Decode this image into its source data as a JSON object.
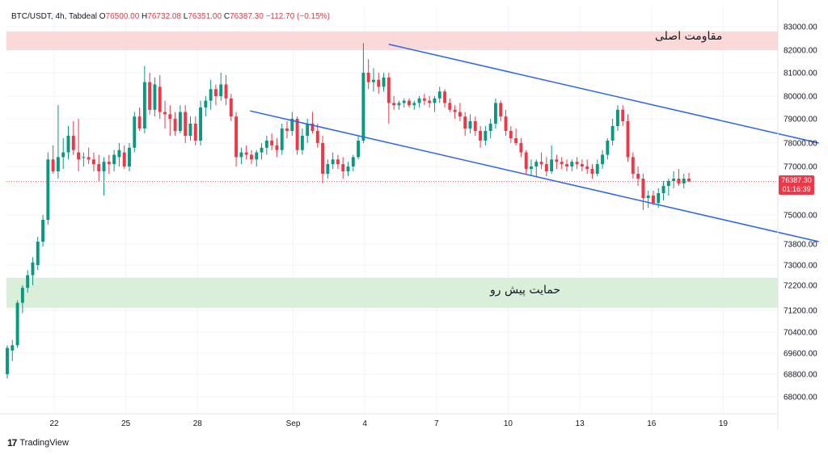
{
  "legend": {
    "symbol": "BTC/USDT, 4h, Tabdeal",
    "o_label": "O",
    "o_value": "76500.00",
    "h_label": "H",
    "h_value": "76732.08",
    "l_label": "L",
    "l_value": "76351.00",
    "c_label": "C",
    "c_value": "76387.30",
    "change": "−112.70 (−0.15%)"
  },
  "last_price": {
    "value": "76387.30",
    "countdown": "01:16:39",
    "color": "#f23645"
  },
  "brand": {
    "logo_text": "17",
    "name": "TradingView"
  },
  "colors": {
    "up": "#089981",
    "down": "#f23645",
    "trendline": "#2962ff",
    "resistance_zone": "#fcd9d9",
    "support_zone": "#d9efd9"
  },
  "chart_data": {
    "type": "candlestick",
    "title": "",
    "y_ticks": [
      68000,
      68800,
      69600,
      70400,
      71200,
      72200,
      73000,
      73800,
      75000,
      77000,
      78000,
      79000,
      80000,
      81000,
      82000,
      83000
    ],
    "y_tick_labels": [
      "68000.00",
      "68800.00",
      "69600.00",
      "70400.00",
      "71200.00",
      "72200.00",
      "73000.00",
      "73800.00",
      "75000.00",
      "77000.00",
      "78000.00",
      "79000.00",
      "80000.00",
      "81000.00",
      "82000.00",
      "83000.00"
    ],
    "x_tick_labels": [
      "22",
      "25",
      "28",
      "Sep",
      "4",
      "7",
      "10",
      "13",
      "16",
      "19"
    ],
    "x_tick_days": [
      22,
      25,
      28,
      32,
      35,
      38,
      41,
      44,
      47,
      50
    ],
    "zones": [
      {
        "label": "مقاومت اصلی",
        "from": 82000,
        "to": 82800,
        "kind": "resistance"
      },
      {
        "label": "حمایت پیش رو",
        "from": 71300,
        "to": 72500,
        "kind": "support"
      }
    ],
    "trendlines": [
      {
        "name": "upper",
        "start": [
          36.0,
          82250
        ],
        "end": [
          54.0,
          78000
        ]
      },
      {
        "name": "lower",
        "start": [
          30.2,
          79350
        ],
        "end": [
          54.0,
          73900
        ]
      }
    ],
    "candles_ohlc": [
      [
        68800,
        69900,
        68650,
        69800
      ],
      [
        69700,
        70100,
        69300,
        69900
      ],
      [
        69900,
        71600,
        69800,
        71500
      ],
      [
        71500,
        72200,
        71100,
        72100
      ],
      [
        72100,
        72800,
        71900,
        72600
      ],
      [
        72600,
        73300,
        72200,
        73100
      ],
      [
        73000,
        74100,
        72800,
        73900
      ],
      [
        73900,
        75000,
        73700,
        74800
      ],
      [
        74800,
        77600,
        74600,
        77300
      ],
      [
        77300,
        77900,
        76700,
        76800
      ],
      [
        76800,
        79600,
        76500,
        77400
      ],
      [
        77400,
        78200,
        76900,
        77600
      ],
      [
        77600,
        78700,
        77300,
        78300
      ],
      [
        78300,
        78900,
        77500,
        77700
      ],
      [
        77600,
        79000,
        76800,
        77300
      ],
      [
        77400,
        77600,
        77000,
        77400
      ],
      [
        77400,
        77800,
        77100,
        77300
      ],
      [
        77300,
        77600,
        76800,
        77100
      ],
      [
        77100,
        77500,
        76400,
        76800
      ],
      [
        76800,
        77400,
        75800,
        77200
      ],
      [
        77200,
        77500,
        76700,
        77100
      ],
      [
        77100,
        77700,
        76800,
        77500
      ],
      [
        77400,
        78000,
        77000,
        77700
      ],
      [
        77600,
        77900,
        76900,
        77000
      ],
      [
        77000,
        78000,
        76800,
        77800
      ],
      [
        77800,
        79300,
        77600,
        79100
      ],
      [
        79100,
        79500,
        78500,
        78600
      ],
      [
        78600,
        81300,
        78400,
        80600
      ],
      [
        80600,
        81000,
        79200,
        79400
      ],
      [
        79400,
        80800,
        79100,
        80500
      ],
      [
        80400,
        80900,
        79000,
        79300
      ],
      [
        79300,
        79800,
        78600,
        79200
      ],
      [
        79200,
        79600,
        78300,
        79000
      ],
      [
        79000,
        79300,
        78300,
        78500
      ],
      [
        78500,
        79600,
        78400,
        79300
      ],
      [
        79300,
        79600,
        78000,
        78300
      ],
      [
        78300,
        79100,
        78100,
        78800
      ],
      [
        78800,
        79100,
        77900,
        78100
      ],
      [
        78100,
        79800,
        77900,
        79500
      ],
      [
        79500,
        80000,
        79100,
        79800
      ],
      [
        79800,
        80700,
        79400,
        80300
      ],
      [
        80300,
        80500,
        79600,
        80000
      ],
      [
        80000,
        81000,
        79800,
        80500
      ],
      [
        80500,
        80900,
        79600,
        79900
      ],
      [
        79900,
        80100,
        78900,
        79100
      ],
      [
        79100,
        79300,
        77000,
        77400
      ],
      [
        77400,
        77800,
        77100,
        77600
      ],
      [
        77600,
        77900,
        77300,
        77500
      ],
      [
        77500,
        77700,
        77100,
        77300
      ],
      [
        77300,
        77700,
        77000,
        77600
      ],
      [
        77600,
        78000,
        77300,
        77800
      ],
      [
        77800,
        78300,
        77500,
        78100
      ],
      [
        78100,
        78400,
        77700,
        77900
      ],
      [
        77900,
        78200,
        77400,
        77700
      ],
      [
        77700,
        78800,
        77500,
        78600
      ],
      [
        78600,
        78900,
        78200,
        78500
      ],
      [
        78500,
        79300,
        78300,
        79000
      ],
      [
        79000,
        79100,
        77500,
        77700
      ],
      [
        77700,
        78600,
        77500,
        78300
      ],
      [
        78300,
        79000,
        78000,
        78800
      ],
      [
        78800,
        79300,
        78400,
        78500
      ],
      [
        78500,
        78800,
        77800,
        78000
      ],
      [
        78000,
        78300,
        76300,
        76700
      ],
      [
        76700,
        77300,
        76500,
        77100
      ],
      [
        77100,
        77600,
        76900,
        77300
      ],
      [
        77300,
        77500,
        76900,
        77100
      ],
      [
        77100,
        77400,
        76500,
        76800
      ],
      [
        76800,
        77200,
        76600,
        77000
      ],
      [
        77000,
        77500,
        76800,
        77400
      ],
      [
        77400,
        78300,
        77300,
        78100
      ],
      [
        78100,
        82300,
        78000,
        81000
      ],
      [
        81000,
        81600,
        80300,
        80600
      ],
      [
        80600,
        81200,
        80200,
        80700
      ],
      [
        80700,
        81000,
        80100,
        80400
      ],
      [
        80400,
        81000,
        80200,
        80800
      ],
      [
        80800,
        81000,
        78800,
        79700
      ],
      [
        79700,
        80000,
        79400,
        79600
      ],
      [
        79600,
        79800,
        79400,
        79700
      ],
      [
        79700,
        79900,
        79500,
        79800
      ],
      [
        79800,
        79900,
        79500,
        79600
      ],
      [
        79600,
        79800,
        79400,
        79700
      ],
      [
        79700,
        80000,
        79500,
        79900
      ],
      [
        79900,
        80100,
        79600,
        79800
      ],
      [
        79800,
        80000,
        79500,
        79700
      ],
      [
        79700,
        80000,
        79300,
        79900
      ],
      [
        79900,
        80400,
        79700,
        80200
      ],
      [
        80200,
        80300,
        79500,
        79700
      ],
      [
        79700,
        79900,
        79300,
        79400
      ],
      [
        79400,
        79600,
        79000,
        79300
      ],
      [
        79300,
        79700,
        78900,
        79100
      ],
      [
        79100,
        79300,
        78300,
        78600
      ],
      [
        78600,
        79200,
        78400,
        78900
      ],
      [
        78900,
        79100,
        78300,
        78500
      ],
      [
        78500,
        78700,
        77800,
        78100
      ],
      [
        78100,
        78700,
        77900,
        78500
      ],
      [
        78500,
        79000,
        78200,
        78800
      ],
      [
        78800,
        79900,
        78600,
        79700
      ],
      [
        79700,
        79800,
        78900,
        79100
      ],
      [
        79100,
        79400,
        78300,
        78500
      ],
      [
        78500,
        78700,
        78000,
        78200
      ],
      [
        78200,
        78600,
        77900,
        78000
      ],
      [
        78000,
        78200,
        77400,
        77600
      ],
      [
        77600,
        77700,
        76700,
        76900
      ],
      [
        76900,
        77300,
        76600,
        77000
      ],
      [
        77000,
        77300,
        76600,
        77200
      ],
      [
        77200,
        77600,
        76900,
        77100
      ],
      [
        77100,
        77400,
        76600,
        76800
      ],
      [
        76800,
        77900,
        76700,
        77300
      ],
      [
        77300,
        77500,
        76900,
        77200
      ],
      [
        77200,
        77400,
        76900,
        77100
      ],
      [
        77100,
        77300,
        76800,
        77000
      ],
      [
        77000,
        77300,
        76800,
        77200
      ],
      [
        77200,
        77400,
        76900,
        77100
      ],
      [
        77100,
        77300,
        76800,
        77000
      ],
      [
        77000,
        77300,
        76700,
        76900
      ],
      [
        76900,
        77100,
        76500,
        76700
      ],
      [
        76700,
        77300,
        76600,
        77100
      ],
      [
        77100,
        77700,
        76900,
        77500
      ],
      [
        77500,
        78200,
        77300,
        78100
      ],
      [
        78100,
        79000,
        77900,
        78700
      ],
      [
        78700,
        79600,
        78500,
        79400
      ],
      [
        79400,
        79600,
        78700,
        78900
      ],
      [
        78900,
        79200,
        77200,
        77400
      ],
      [
        77400,
        77600,
        76500,
        76700
      ],
      [
        76700,
        77000,
        76200,
        76500
      ],
      [
        76500,
        76700,
        75200,
        75700
      ],
      [
        75700,
        76000,
        75300,
        75800
      ],
      [
        75800,
        76000,
        75400,
        75500
      ],
      [
        75500,
        76100,
        75300,
        75900
      ],
      [
        75900,
        76400,
        75600,
        76200
      ],
      [
        76200,
        76500,
        75800,
        76400
      ],
      [
        76400,
        76800,
        76100,
        76500
      ],
      [
        76500,
        76900,
        76200,
        76300
      ],
      [
        76300,
        76700,
        76100,
        76500
      ],
      [
        76500,
        76732,
        76351,
        76387
      ]
    ]
  }
}
